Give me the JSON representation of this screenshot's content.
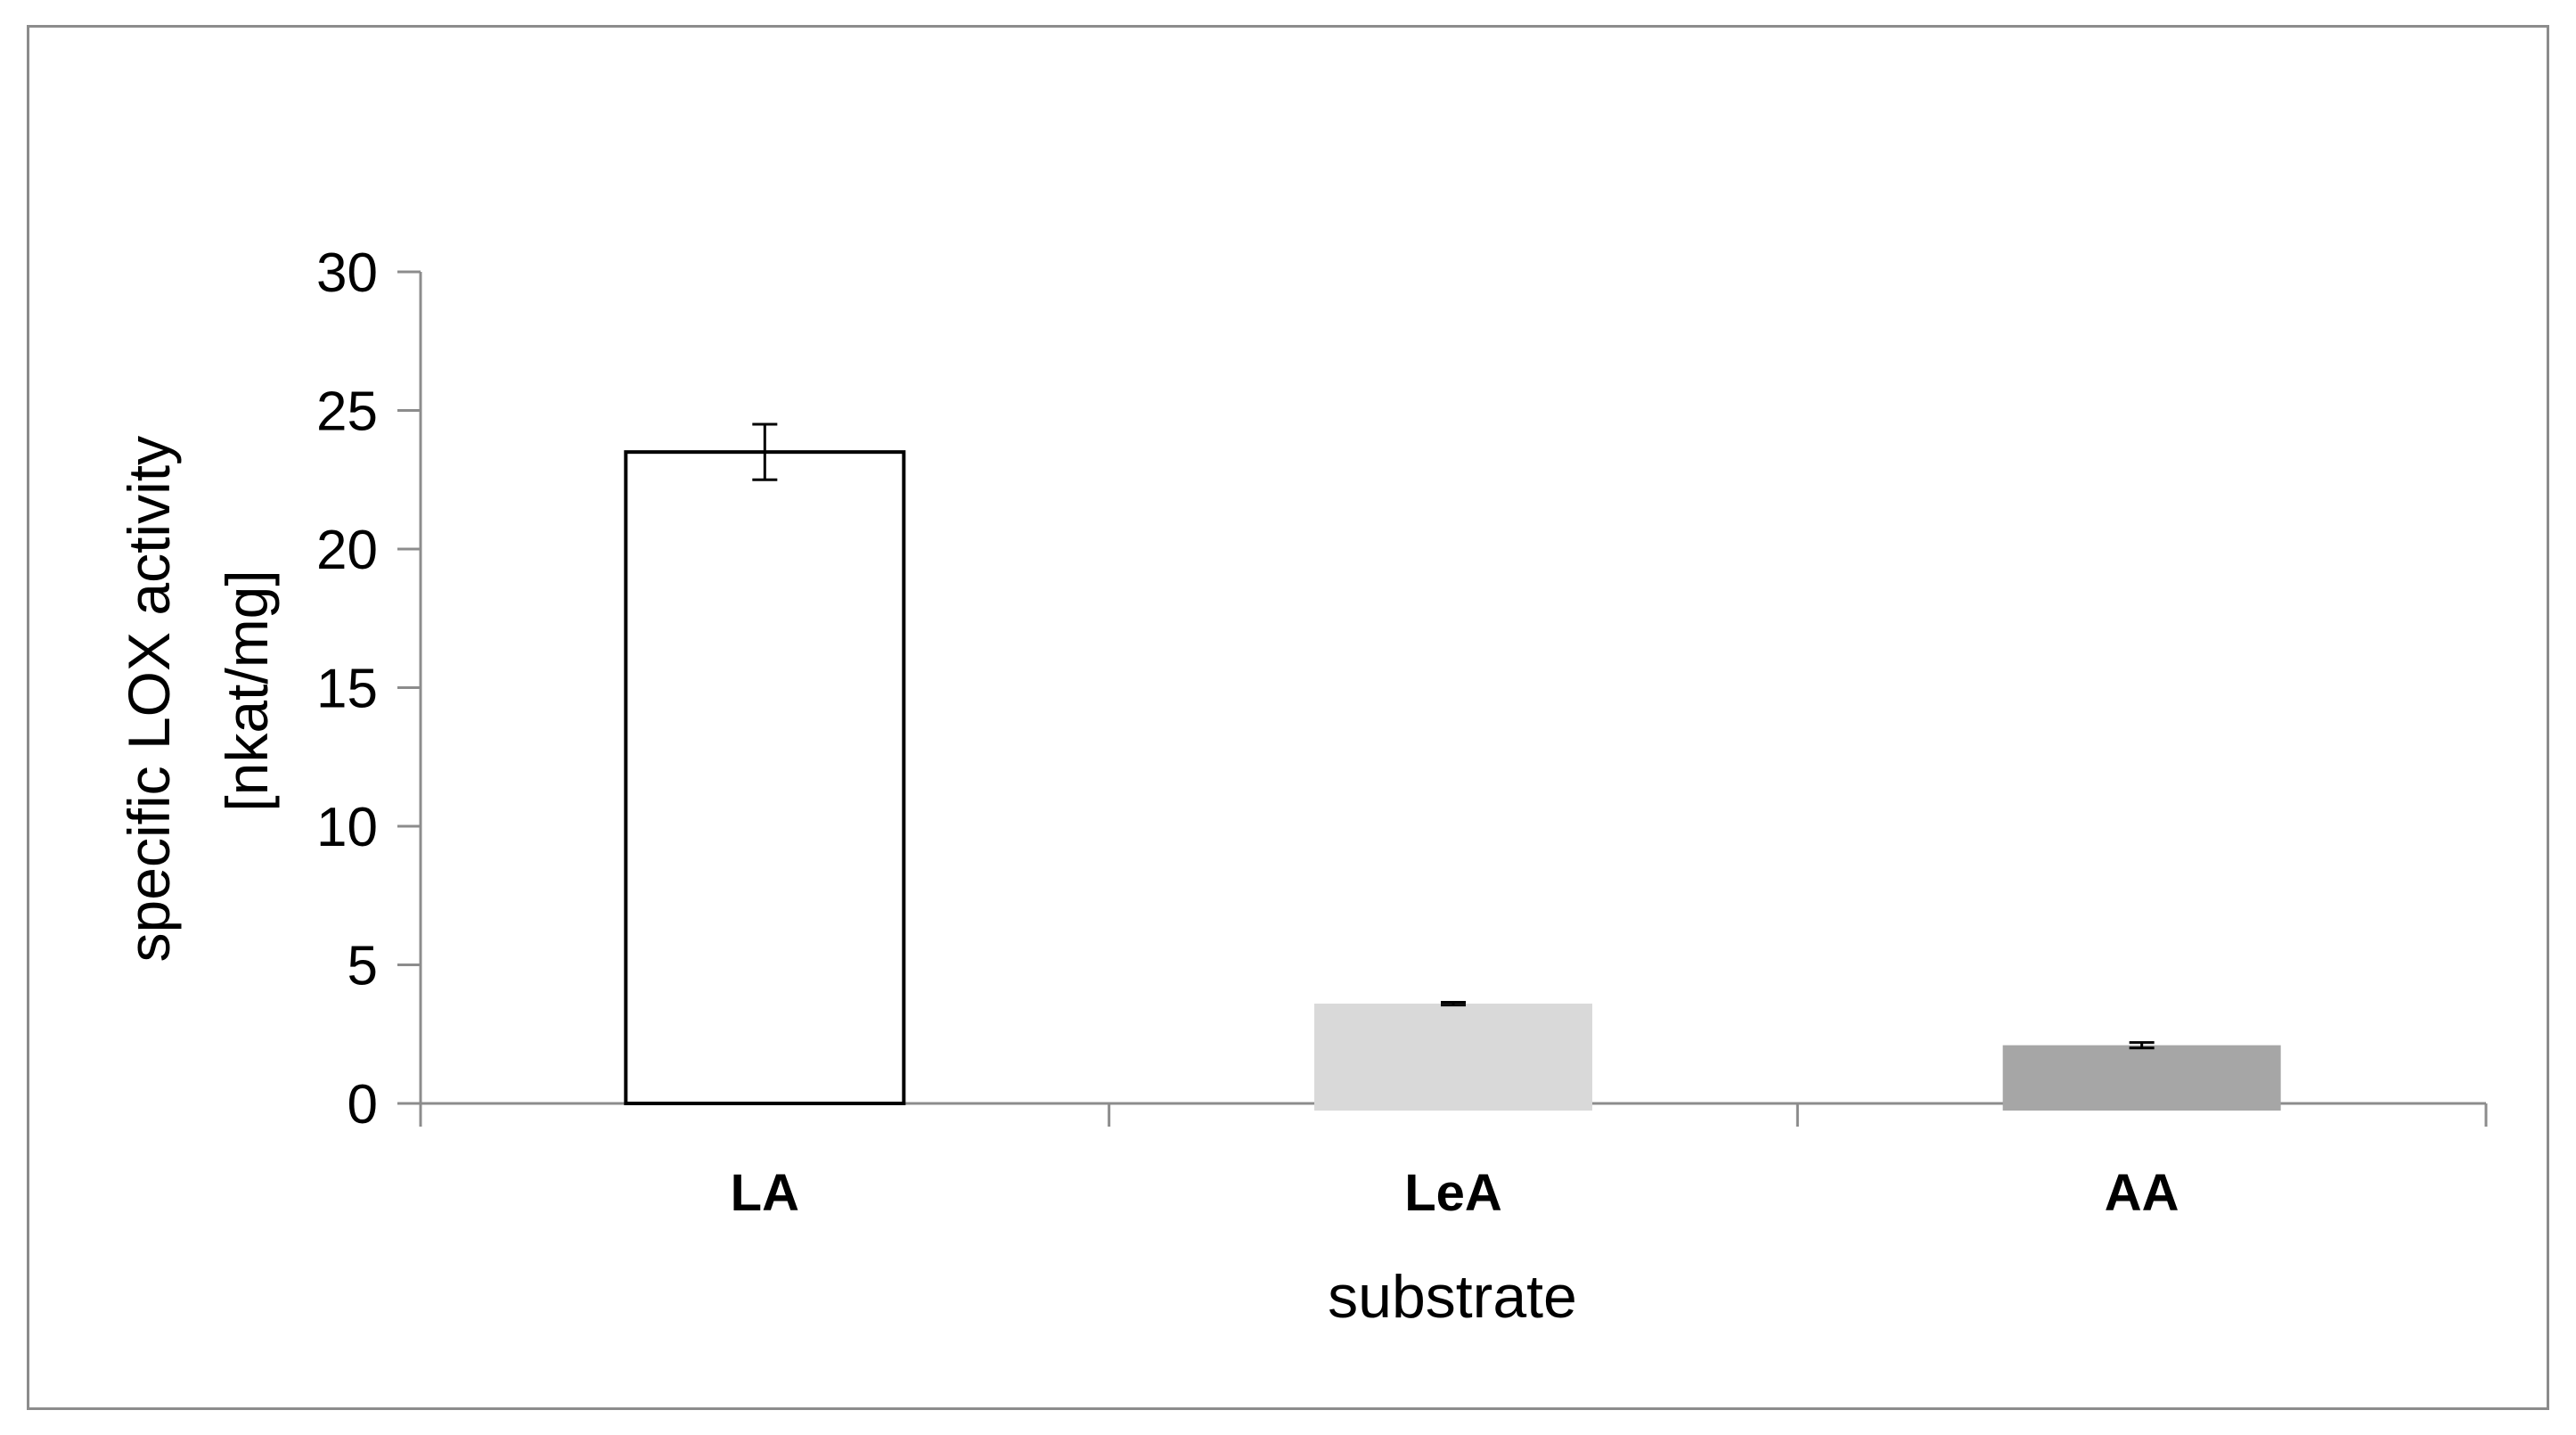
{
  "chart_data": {
    "type": "bar",
    "categories": [
      "LA",
      "LeA",
      "AA"
    ],
    "values": [
      23.5,
      3.6,
      2.1
    ],
    "errors": [
      1.0,
      0.05,
      0.1
    ],
    "bar_colors": [
      "#ffffff",
      "#d9d9d9",
      "#a6a6a6"
    ],
    "bar_outline": [
      "#000000",
      "none",
      "none"
    ],
    "title": "",
    "xlabel": "substrate",
    "ylabel_lines": [
      "specific LOX activity",
      "[nkat/mg]"
    ],
    "ylim": [
      0,
      30
    ],
    "yticks": [
      0,
      5,
      10,
      15,
      20,
      25,
      30
    ],
    "grid": false,
    "legend": "none"
  }
}
